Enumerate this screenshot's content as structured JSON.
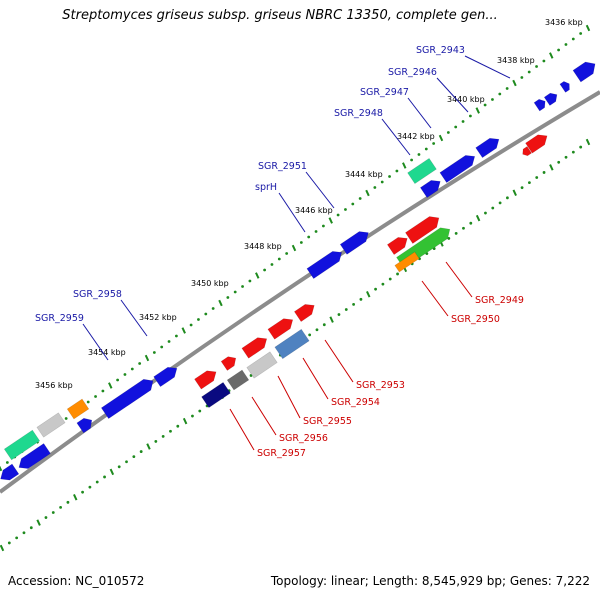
{
  "title": "Streptomyces griseus subsp. griseus NBRC 13350, complete gen...",
  "footer": {
    "accession": "Accession: NC_010572",
    "summary": "Topology: linear; Length: 8,545,929 bp; Genes: 7,222"
  },
  "colors": {
    "dot_track": "#1e8a1e",
    "backbone": "#8c8c8c",
    "top_label": "#1a1aa6",
    "bottom_label": "#cc0000"
  },
  "ticks": [
    "3436 kbp",
    "3438 kbp",
    "3440 kbp",
    "3442 kbp",
    "3444 kbp",
    "3446 kbp",
    "3448 kbp",
    "3450 kbp",
    "3452 kbp",
    "3454 kbp",
    "3456 kbp"
  ],
  "top_gene_labels": [
    "SGR_2943",
    "SGR_2946",
    "SGR_2947",
    "SGR_2948",
    "SGR_2951",
    "sprH",
    "SGR_2958",
    "SGR_2959"
  ],
  "bottom_gene_labels": [
    "SGR_2949",
    "SGR_2950",
    "SGR_2953",
    "SGR_2954",
    "SGR_2955",
    "SGR_2956",
    "SGR_2957"
  ]
}
